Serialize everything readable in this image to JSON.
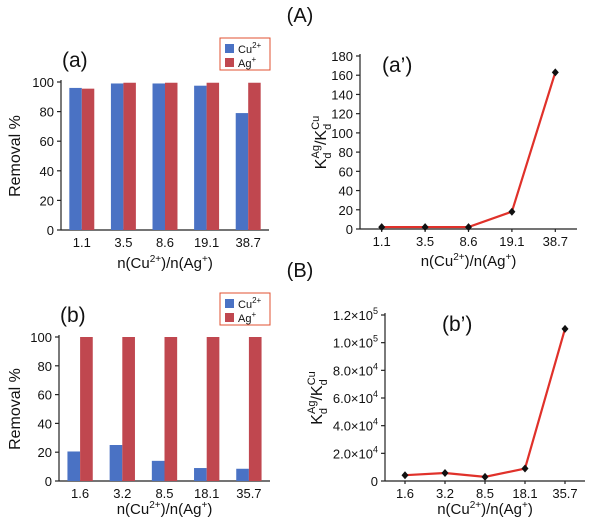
{
  "figure": {
    "section_a": "(A)",
    "section_b": "(B)"
  },
  "chart_data": [
    {
      "id": "a",
      "panel_label": "(a)",
      "type": "bar",
      "title": "",
      "categories": [
        "1.1",
        "3.5",
        "8.6",
        "19.1",
        "38.7"
      ],
      "series": [
        {
          "name": "Cu²⁺",
          "color": "#4a72c4",
          "values": [
            96,
            99,
            99,
            97.5,
            79
          ]
        },
        {
          "name": "Ag⁺",
          "color": "#c0474f",
          "values": [
            95.5,
            99.5,
            99.5,
            99.5,
            99.5
          ]
        }
      ],
      "xlabel": "n(Cu²⁺)/n(Ag⁺)",
      "ylabel": "Removal %",
      "ylim": [
        0,
        100
      ],
      "yticks": [
        "0",
        "20",
        "40",
        "60",
        "80",
        "100"
      ],
      "legend_position": "top-right"
    },
    {
      "id": "a2",
      "panel_label": "(a’)",
      "type": "line",
      "title": "",
      "categories": [
        "1.1",
        "3.5",
        "8.6",
        "19.1",
        "38.7"
      ],
      "values": [
        2,
        2,
        2,
        18,
        163
      ],
      "line_color": "#e0312a",
      "xlabel": "n(Cu²⁺)/n(Ag⁺)",
      "ylabel": {
        "main": "K",
        "sub1": "d",
        "sup1": "Ag",
        "slash": "/K",
        "sub2": "d",
        "sup2": "Cu"
      },
      "ylim": [
        0,
        180
      ],
      "yticks": [
        "0",
        "20",
        "40",
        "60",
        "80",
        "100",
        "120",
        "140",
        "160",
        "180"
      ]
    },
    {
      "id": "b",
      "panel_label": "(b)",
      "type": "bar",
      "title": "",
      "categories": [
        "1.6",
        "3.2",
        "8.5",
        "18.1",
        "35.7"
      ],
      "series": [
        {
          "name": "Cu²⁺",
          "color": "#4a72c4",
          "values": [
            20.5,
            25,
            14,
            9,
            8.5
          ]
        },
        {
          "name": "Ag⁺",
          "color": "#c0474f",
          "values": [
            100,
            100,
            100,
            100,
            100
          ]
        }
      ],
      "xlabel": "n(Cu²⁺)/n(Ag⁺)",
      "ylabel": "Removal %",
      "ylim": [
        0,
        100
      ],
      "yticks": [
        "0",
        "20",
        "40",
        "60",
        "80",
        "100"
      ],
      "legend_position": "top-right"
    },
    {
      "id": "b2",
      "panel_label": "(b’)",
      "type": "line",
      "title": "",
      "categories": [
        "1.6",
        "3.2",
        "8.5",
        "18.1",
        "35.7"
      ],
      "values": [
        4200,
        5800,
        3000,
        9000,
        110000
      ],
      "line_color": "#e0312a",
      "xlabel": "n(Cu²⁺)/n(Ag⁺)",
      "ylabel": {
        "main": "K",
        "sub1": "d",
        "sup1": "Ag",
        "slash": "/K",
        "sub2": "d",
        "sup2": "Cu"
      },
      "ylim": [
        0,
        120000
      ],
      "yticks": [
        {
          "base": "0"
        },
        {
          "base": "2.0×10",
          "exp": "4"
        },
        {
          "base": "4.0×10",
          "exp": "4"
        },
        {
          "base": "6.0×10",
          "exp": "4"
        },
        {
          "base": "8.0×10",
          "exp": "4"
        },
        {
          "base": "1.0×10",
          "exp": "5"
        },
        {
          "base": "1.2×10",
          "exp": "5"
        }
      ]
    }
  ]
}
